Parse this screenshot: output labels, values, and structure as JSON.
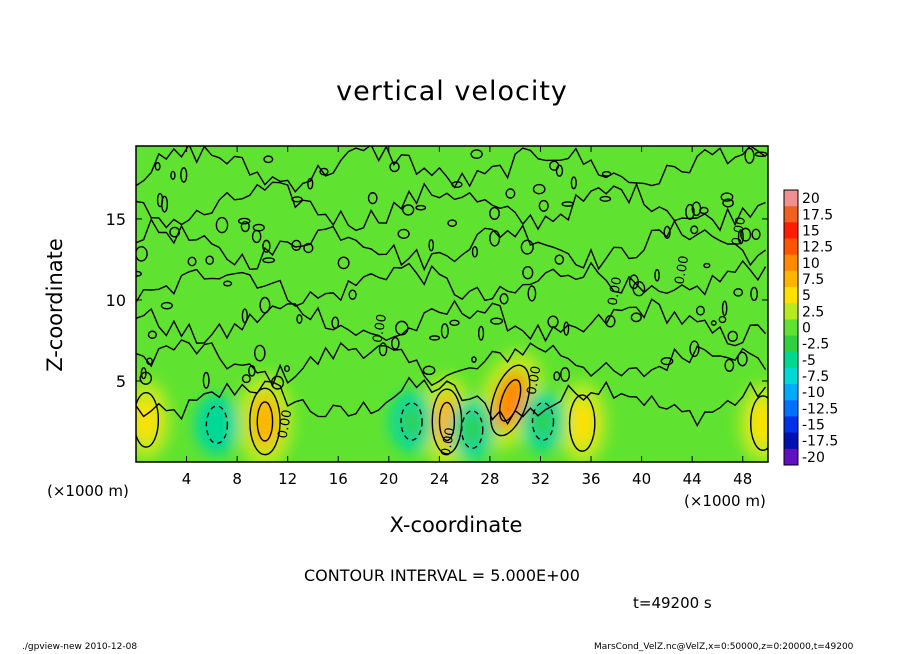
{
  "header": {
    "title": "vertical velocity"
  },
  "footer": {
    "left": "./gpview-new  2010-12-08",
    "right": "MarsCond_VelZ.nc@VelZ,x=0:50000,z=0:20000,t=49200"
  },
  "annotations": {
    "contour_interval": "CONTOUR INTERVAL = 5.000E+00",
    "time": "t=49200 s"
  },
  "chart_data": {
    "type": "heatmap",
    "title": "vertical velocity",
    "xlabel": "X-coordinate",
    "ylabel": "Z-coordinate",
    "x_unit_left": "(×1000 m)",
    "x_unit_right": "(×1000 m)",
    "xlim": [
      0,
      50
    ],
    "ylim": [
      0,
      19.5
    ],
    "x_ticks": [
      "4",
      "8",
      "12",
      "16",
      "20",
      "24",
      "28",
      "32",
      "36",
      "40",
      "44",
      "48"
    ],
    "y_ticks": [
      "5",
      "10",
      "15"
    ],
    "contour_labels": [
      {
        "text": "0.00",
        "x": 12.1,
        "y": 2.3
      },
      {
        "text": "0.00",
        "x": 25.0,
        "y": 1.2
      },
      {
        "text": "0.00",
        "x": 31.8,
        "y": 5.0
      },
      {
        "text": "0.00",
        "x": 38.2,
        "y": 10.5
      },
      {
        "text": "0.00",
        "x": 43.5,
        "y": 11.8
      },
      {
        "text": "0.00",
        "x": 48.0,
        "y": 14.2
      },
      {
        "text": "0.00",
        "x": 19.6,
        "y": 8.2
      }
    ],
    "features": [
      {
        "label": "updraft",
        "x": 10.2,
        "z": 2.5,
        "w": 6.5
      },
      {
        "label": "updraft",
        "x": 24.6,
        "z": 2.5,
        "w": 6.0
      },
      {
        "label": "updraft",
        "x": 29.6,
        "z": 3.8,
        "w": 8.5
      },
      {
        "label": "updraft",
        "x": 35.3,
        "z": 2.4,
        "w": 3.5
      },
      {
        "label": "updraft",
        "x": 0.8,
        "z": 2.6,
        "w": 3.0
      },
      {
        "label": "updraft",
        "x": 49.6,
        "z": 2.4,
        "w": 3.0
      },
      {
        "label": "downdraft",
        "x": 6.4,
        "z": 2.3,
        "w": -6.0
      },
      {
        "label": "downdraft",
        "x": 21.8,
        "z": 2.5,
        "w": -3.0
      },
      {
        "label": "downdraft",
        "x": 26.6,
        "z": 2.0,
        "w": -3.0
      },
      {
        "label": "downdraft",
        "x": 32.2,
        "z": 2.5,
        "w": -4.0
      }
    ],
    "colorbar": {
      "levels": [
        "20",
        "17.5",
        "15",
        "12.5",
        "10",
        "7.5",
        "5",
        "2.5",
        "0",
        "-2.5",
        "-5",
        "-7.5",
        "-10",
        "-12.5",
        "-15",
        "-17.5",
        "-20"
      ],
      "colors": [
        "#f08f8f",
        "#f0601e",
        "#ff1e00",
        "#ff5500",
        "#ff8a00",
        "#ffb400",
        "#ffe000",
        "#b8ea20",
        "#5fe330",
        "#30d040",
        "#00d890",
        "#00d8d8",
        "#00aaff",
        "#0070ff",
        "#0030e8",
        "#0010b0",
        "#6010c0"
      ]
    }
  }
}
